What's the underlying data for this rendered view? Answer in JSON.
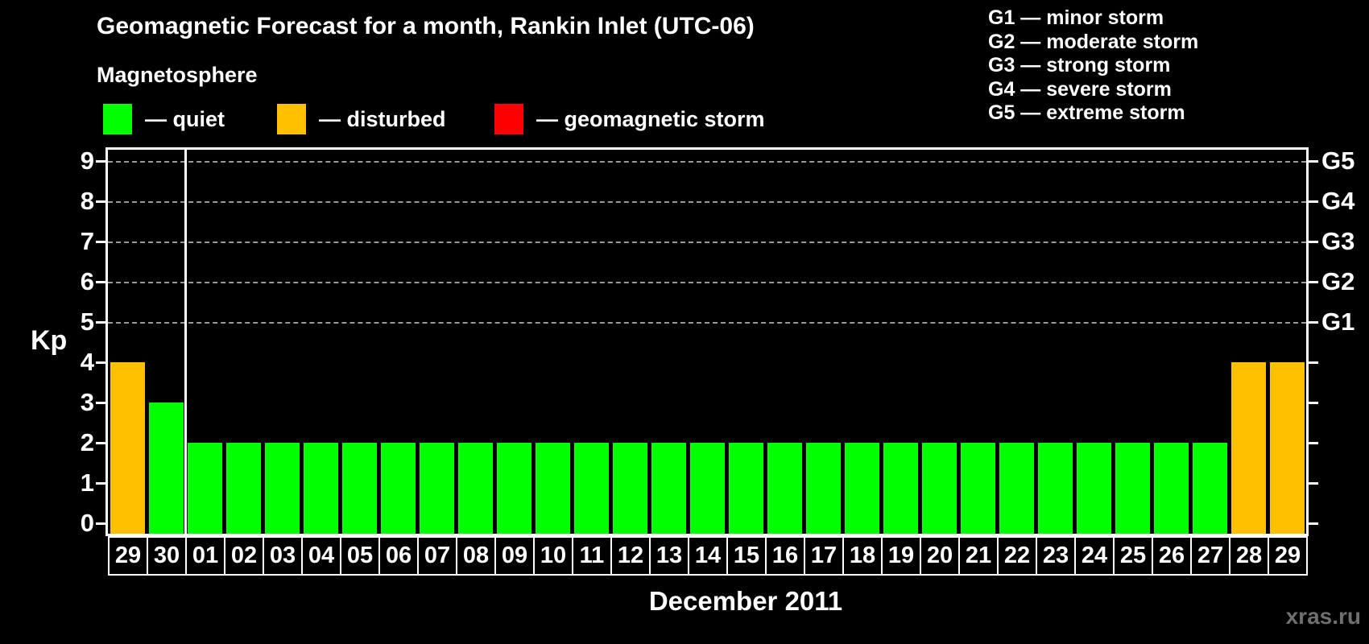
{
  "title": "Geomagnetic Forecast for a month, Rankin Inlet (UTC-06)",
  "subtitle": "Magnetosphere",
  "legend": {
    "items": [
      {
        "name": "quiet",
        "label": "— quiet",
        "color": "#00ff00"
      },
      {
        "name": "disturbed",
        "label": "— disturbed",
        "color": "#ffc000"
      },
      {
        "name": "storm",
        "label": "— geomagnetic storm",
        "color": "#ff0000"
      }
    ]
  },
  "storm_legend": [
    "G1 — minor storm",
    "G2 — moderate storm",
    "G3 — strong storm",
    "G4 — severe storm",
    "G5 — extreme storm"
  ],
  "watermark": "xras.ru",
  "chart_data": {
    "type": "bar",
    "title": "Geomagnetic Forecast for a month, Rankin Inlet (UTC-06)",
    "xlabel": "December 2011",
    "ylabel": "Kp",
    "ylim": [
      0,
      9
    ],
    "yticks": [
      0,
      1,
      2,
      3,
      4,
      5,
      6,
      7,
      8,
      9
    ],
    "grid_levels": [
      5,
      6,
      7,
      8,
      9
    ],
    "right_axis_labels": [
      {
        "label": "G1",
        "kp": 5
      },
      {
        "label": "G2",
        "kp": 6
      },
      {
        "label": "G3",
        "kp": 7
      },
      {
        "label": "G4",
        "kp": 8
      },
      {
        "label": "G5",
        "kp": 9
      }
    ],
    "legend_position": "top-left",
    "grid": "dashed horizontal at storm levels only",
    "separator_after_index": 1,
    "categories": [
      "29",
      "30",
      "01",
      "02",
      "03",
      "04",
      "05",
      "06",
      "07",
      "08",
      "09",
      "10",
      "11",
      "12",
      "13",
      "14",
      "15",
      "16",
      "17",
      "18",
      "19",
      "20",
      "21",
      "22",
      "23",
      "24",
      "25",
      "26",
      "27",
      "28",
      "29"
    ],
    "values": [
      4,
      3,
      2,
      2,
      2,
      2,
      2,
      2,
      2,
      2,
      2,
      2,
      2,
      2,
      2,
      2,
      2,
      2,
      2,
      2,
      2,
      2,
      2,
      2,
      2,
      2,
      2,
      2,
      2,
      4,
      4
    ],
    "states": [
      "disturbed",
      "quiet",
      "quiet",
      "quiet",
      "quiet",
      "quiet",
      "quiet",
      "quiet",
      "quiet",
      "quiet",
      "quiet",
      "quiet",
      "quiet",
      "quiet",
      "quiet",
      "quiet",
      "quiet",
      "quiet",
      "quiet",
      "quiet",
      "quiet",
      "quiet",
      "quiet",
      "quiet",
      "quiet",
      "quiet",
      "quiet",
      "quiet",
      "quiet",
      "disturbed",
      "disturbed"
    ],
    "colors_by_state": {
      "quiet": "#00ff00",
      "disturbed": "#ffc000",
      "storm": "#ff0000"
    }
  }
}
